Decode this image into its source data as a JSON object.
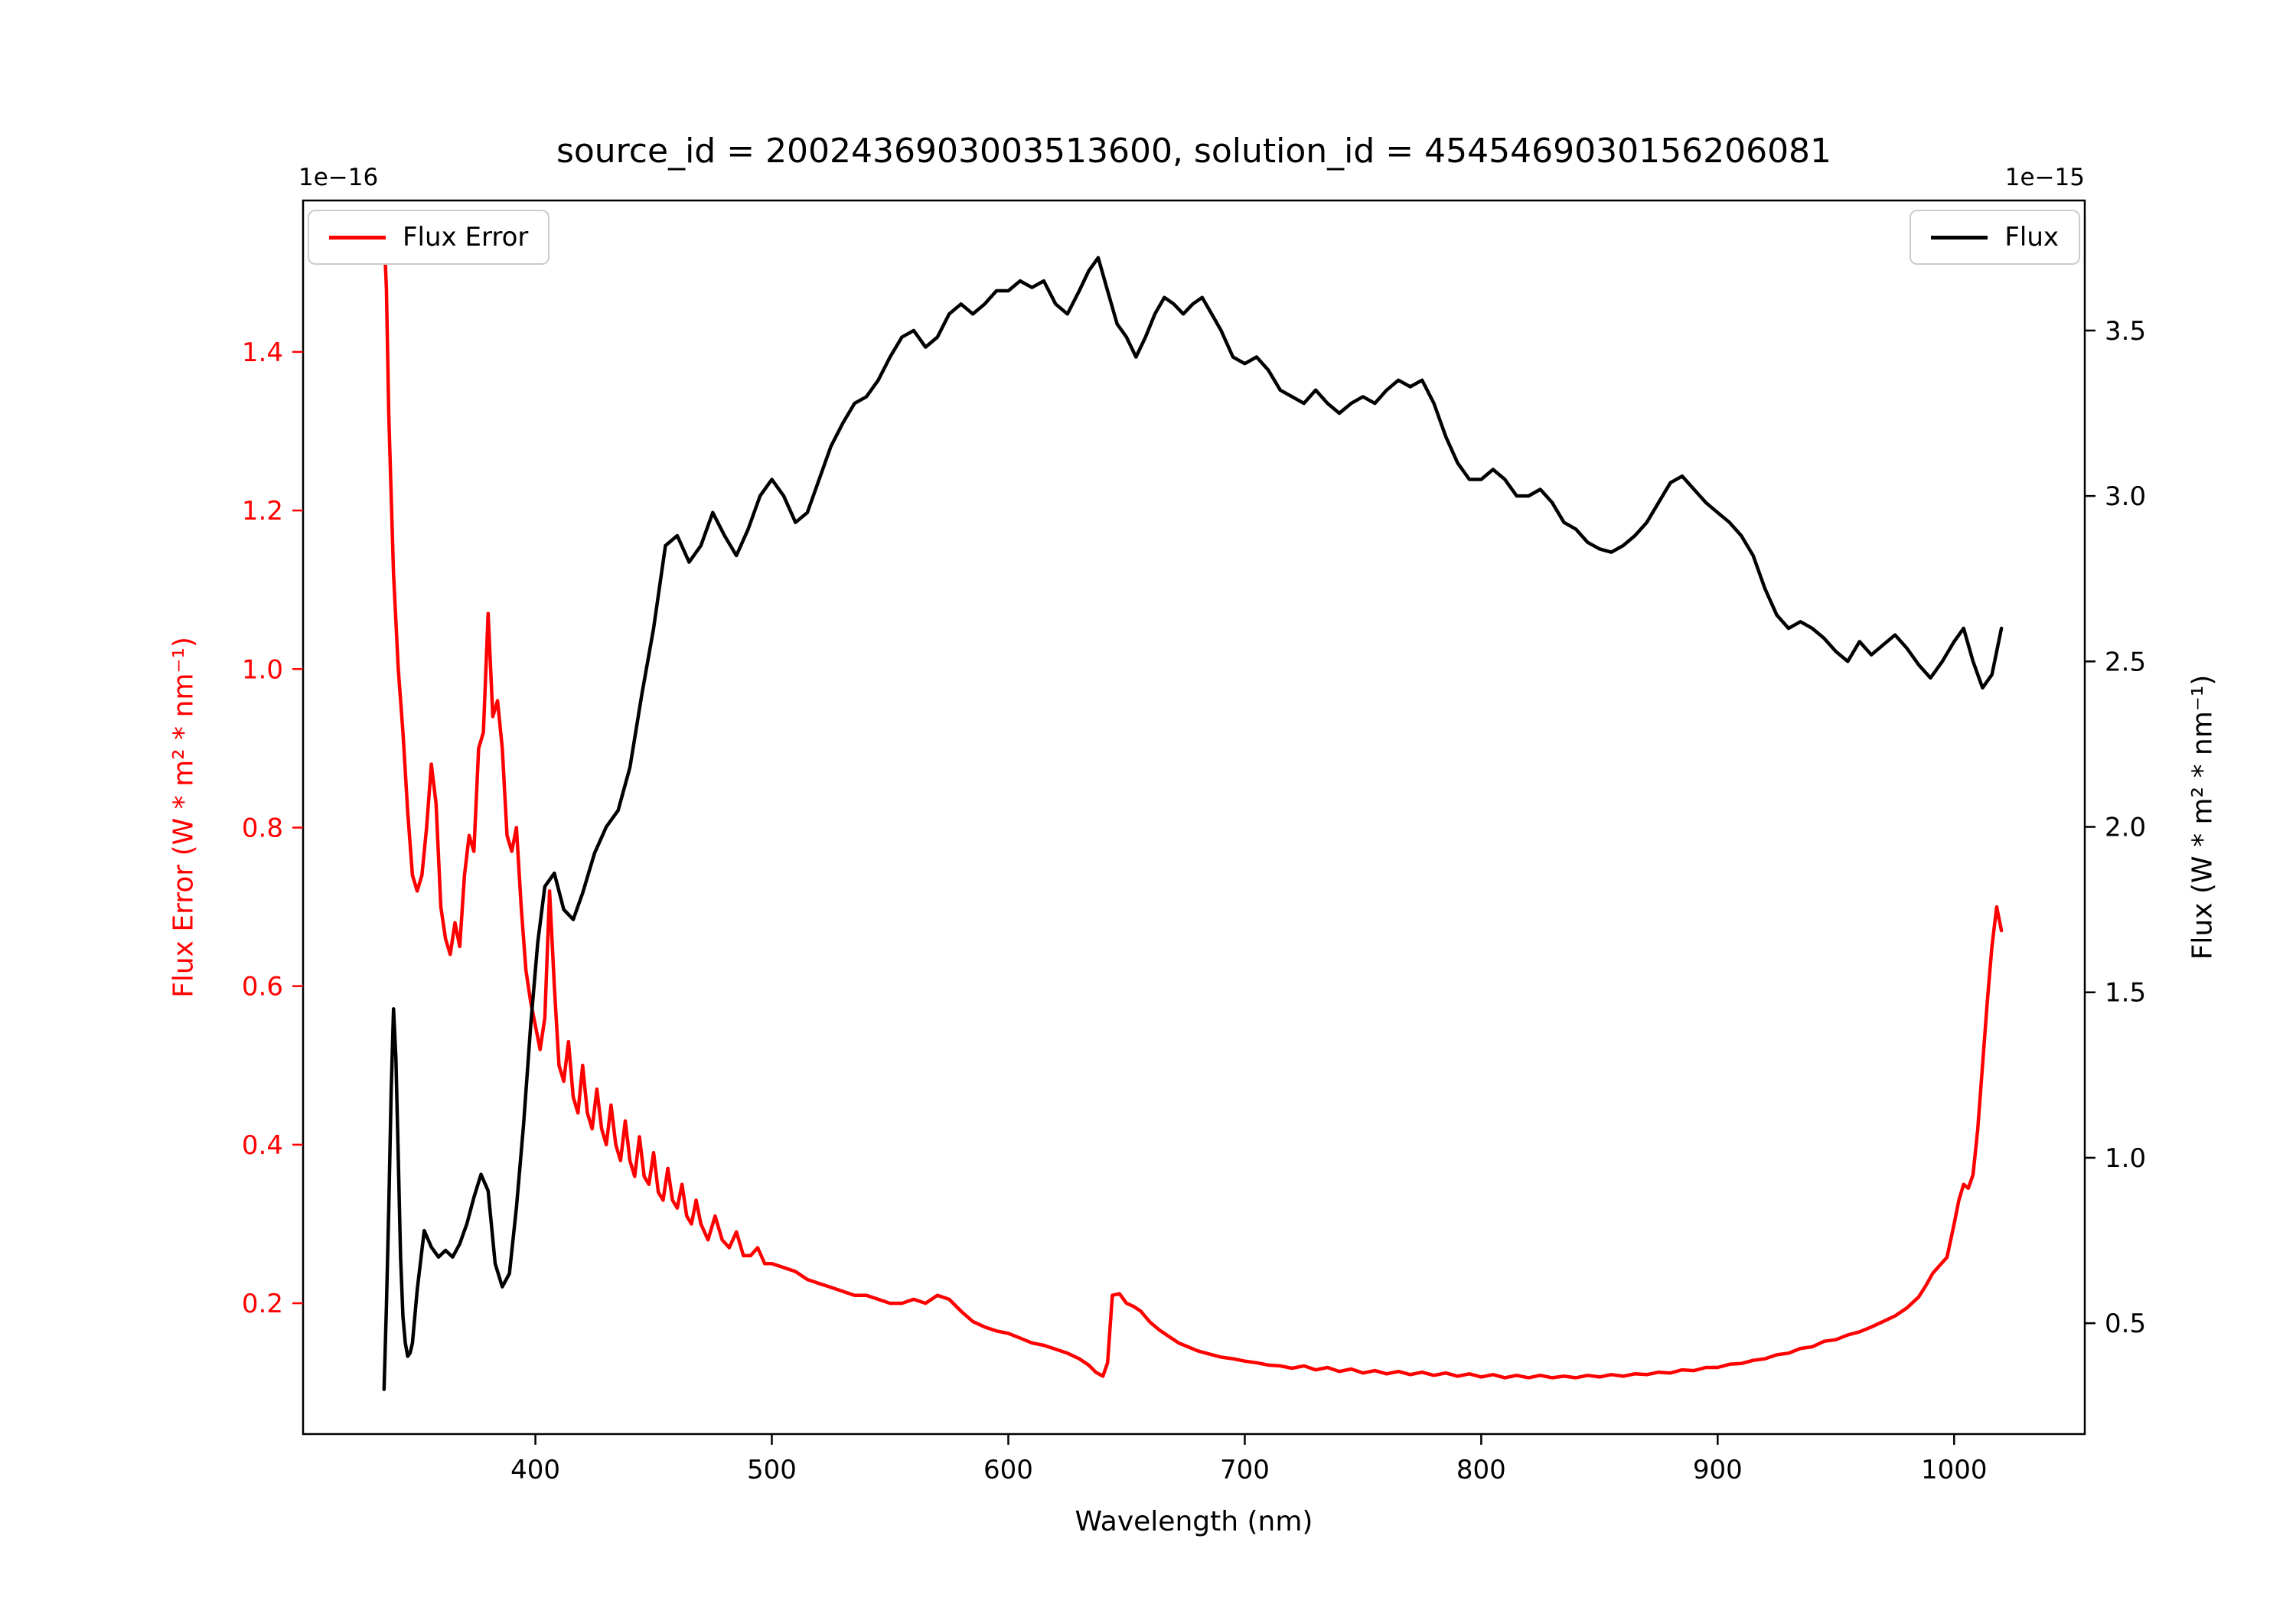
{
  "chart": {
    "y_left_offset": "1e−16",
    "y_right_offset": "1e−15"
  },
  "chart_data": {
    "type": "line",
    "title": "source_id = 2002436903003513600, solution_id = 4545469030156206081",
    "xlabel": "Wavelength (nm)",
    "y_left_label": "Flux Error (W * m² * nm⁻¹)",
    "y_right_label": "Flux (W * m² * nm⁻¹)",
    "y_left_offset": "1e−16",
    "y_right_offset": "1e−15",
    "grid": false,
    "x_range": [
      301.75,
      1055.25
    ],
    "x_ticks": [
      400,
      500,
      600,
      700,
      800,
      900,
      1000
    ],
    "y_left_range": [
      0.035,
      1.591
    ],
    "y_left_ticks": [
      0.2,
      0.4,
      0.6,
      0.8,
      1.0,
      1.2,
      1.4
    ],
    "y_right_range": [
      0.165,
      3.893
    ],
    "y_right_ticks": [
      0.5,
      1.0,
      1.5,
      2.0,
      2.5,
      3.0,
      3.5
    ],
    "legend_positions": [
      "upper left",
      "upper right"
    ],
    "series": [
      {
        "name": "Flux Error",
        "axis": "left",
        "color": "#ff0000",
        "unit_scale": "1e-16",
        "x": [
          336,
          337,
          338,
          340,
          342,
          344,
          346,
          348,
          350,
          352,
          354,
          356,
          358,
          360,
          362,
          364,
          366,
          368,
          370,
          372,
          374,
          376,
          378,
          380,
          382,
          384,
          386,
          388,
          390,
          392,
          394,
          396,
          398,
          400,
          402,
          404,
          406,
          408,
          410,
          412,
          414,
          416,
          418,
          420,
          422,
          424,
          426,
          428,
          430,
          432,
          434,
          436,
          438,
          440,
          442,
          444,
          446,
          448,
          450,
          452,
          454,
          456,
          458,
          460,
          462,
          464,
          466,
          468,
          470,
          473,
          476,
          479,
          482,
          485,
          488,
          491,
          494,
          497,
          500,
          505,
          510,
          515,
          520,
          525,
          530,
          535,
          540,
          545,
          550,
          555,
          560,
          565,
          570,
          575,
          580,
          585,
          590,
          595,
          600,
          605,
          610,
          615,
          620,
          625,
          630,
          634,
          637,
          640,
          642,
          644,
          647,
          650,
          653,
          656,
          660,
          664,
          668,
          672,
          676,
          680,
          685,
          690,
          695,
          700,
          705,
          710,
          715,
          720,
          725,
          730,
          735,
          740,
          745,
          750,
          755,
          760,
          765,
          770,
          775,
          780,
          785,
          790,
          795,
          800,
          805,
          810,
          815,
          820,
          825,
          830,
          835,
          840,
          845,
          850,
          855,
          860,
          865,
          870,
          875,
          880,
          885,
          890,
          895,
          900,
          905,
          910,
          915,
          920,
          925,
          930,
          935,
          940,
          945,
          950,
          955,
          960,
          965,
          970,
          975,
          980,
          985,
          988,
          991,
          994,
          997,
          1000,
          1002,
          1004,
          1006,
          1008,
          1010,
          1012,
          1014,
          1016,
          1018,
          1020
        ],
        "y": [
          1.55,
          1.48,
          1.32,
          1.12,
          1.0,
          0.92,
          0.82,
          0.74,
          0.72,
          0.74,
          0.8,
          0.88,
          0.83,
          0.7,
          0.66,
          0.64,
          0.68,
          0.65,
          0.74,
          0.79,
          0.77,
          0.9,
          0.92,
          1.07,
          0.94,
          0.96,
          0.9,
          0.79,
          0.77,
          0.8,
          0.7,
          0.62,
          0.58,
          0.55,
          0.52,
          0.56,
          0.72,
          0.6,
          0.5,
          0.48,
          0.53,
          0.46,
          0.44,
          0.5,
          0.44,
          0.42,
          0.47,
          0.42,
          0.4,
          0.45,
          0.4,
          0.38,
          0.43,
          0.38,
          0.36,
          0.41,
          0.36,
          0.35,
          0.39,
          0.34,
          0.33,
          0.37,
          0.33,
          0.32,
          0.35,
          0.31,
          0.3,
          0.33,
          0.3,
          0.28,
          0.31,
          0.28,
          0.27,
          0.29,
          0.26,
          0.26,
          0.27,
          0.25,
          0.25,
          0.245,
          0.24,
          0.23,
          0.225,
          0.22,
          0.215,
          0.21,
          0.21,
          0.205,
          0.2,
          0.2,
          0.205,
          0.2,
          0.21,
          0.205,
          0.19,
          0.177,
          0.17,
          0.165,
          0.162,
          0.156,
          0.15,
          0.147,
          0.142,
          0.137,
          0.13,
          0.122,
          0.113,
          0.108,
          0.125,
          0.21,
          0.212,
          0.2,
          0.196,
          0.19,
          0.176,
          0.166,
          0.158,
          0.15,
          0.145,
          0.14,
          0.136,
          0.132,
          0.13,
          0.127,
          0.125,
          0.122,
          0.121,
          0.118,
          0.121,
          0.116,
          0.119,
          0.114,
          0.117,
          0.112,
          0.115,
          0.111,
          0.114,
          0.11,
          0.113,
          0.109,
          0.112,
          0.108,
          0.111,
          0.107,
          0.11,
          0.106,
          0.109,
          0.106,
          0.109,
          0.106,
          0.108,
          0.106,
          0.109,
          0.107,
          0.11,
          0.108,
          0.111,
          0.11,
          0.113,
          0.112,
          0.116,
          0.115,
          0.119,
          0.119,
          0.123,
          0.124,
          0.128,
          0.13,
          0.135,
          0.137,
          0.143,
          0.145,
          0.152,
          0.154,
          0.16,
          0.164,
          0.17,
          0.177,
          0.184,
          0.194,
          0.208,
          0.222,
          0.238,
          0.248,
          0.258,
          0.3,
          0.33,
          0.35,
          0.345,
          0.362,
          0.42,
          0.5,
          0.58,
          0.65,
          0.7,
          0.67
        ]
      },
      {
        "name": "Flux",
        "axis": "right",
        "color": "#000000",
        "unit_scale": "1e-15",
        "x": [
          336,
          337,
          338,
          339,
          340,
          341,
          342,
          343,
          344,
          345,
          346,
          347,
          348,
          350,
          353,
          356,
          359,
          362,
          365,
          368,
          371,
          374,
          377,
          380,
          383,
          386,
          389,
          392,
          395,
          398,
          401,
          404,
          408,
          412,
          416,
          420,
          425,
          430,
          435,
          440,
          445,
          450,
          455,
          460,
          465,
          470,
          475,
          480,
          485,
          490,
          495,
          500,
          505,
          510,
          515,
          520,
          525,
          530,
          535,
          540,
          545,
          550,
          555,
          560,
          565,
          570,
          575,
          580,
          585,
          590,
          595,
          600,
          605,
          610,
          615,
          620,
          625,
          630,
          634,
          638,
          642,
          646,
          650,
          654,
          658,
          662,
          666,
          670,
          674,
          678,
          682,
          686,
          690,
          695,
          700,
          705,
          710,
          715,
          720,
          725,
          730,
          735,
          740,
          745,
          750,
          755,
          760,
          765,
          770,
          775,
          780,
          785,
          790,
          795,
          800,
          805,
          810,
          815,
          820,
          825,
          830,
          835,
          840,
          845,
          850,
          855,
          860,
          865,
          870,
          875,
          880,
          885,
          890,
          895,
          900,
          905,
          910,
          915,
          920,
          925,
          930,
          935,
          940,
          945,
          950,
          955,
          960,
          965,
          970,
          975,
          980,
          985,
          990,
          995,
          1000,
          1004,
          1008,
          1012,
          1016,
          1020
        ],
        "y": [
          0.3,
          0.55,
          0.85,
          1.2,
          1.45,
          1.3,
          1.0,
          0.7,
          0.52,
          0.44,
          0.4,
          0.41,
          0.44,
          0.6,
          0.78,
          0.73,
          0.7,
          0.72,
          0.7,
          0.74,
          0.8,
          0.88,
          0.95,
          0.9,
          0.68,
          0.61,
          0.65,
          0.85,
          1.1,
          1.4,
          1.65,
          1.82,
          1.86,
          1.75,
          1.72,
          1.8,
          1.92,
          2.0,
          2.05,
          2.18,
          2.4,
          2.6,
          2.85,
          2.88,
          2.8,
          2.85,
          2.95,
          2.88,
          2.82,
          2.9,
          3.0,
          3.05,
          3.0,
          2.92,
          2.95,
          3.05,
          3.15,
          3.22,
          3.28,
          3.3,
          3.35,
          3.42,
          3.48,
          3.5,
          3.45,
          3.48,
          3.55,
          3.58,
          3.55,
          3.58,
          3.62,
          3.62,
          3.65,
          3.63,
          3.65,
          3.58,
          3.55,
          3.62,
          3.68,
          3.72,
          3.62,
          3.52,
          3.48,
          3.42,
          3.48,
          3.55,
          3.6,
          3.58,
          3.55,
          3.58,
          3.6,
          3.55,
          3.5,
          3.42,
          3.4,
          3.42,
          3.38,
          3.32,
          3.3,
          3.28,
          3.32,
          3.28,
          3.25,
          3.28,
          3.3,
          3.28,
          3.32,
          3.35,
          3.33,
          3.35,
          3.28,
          3.18,
          3.1,
          3.05,
          3.05,
          3.08,
          3.05,
          3.0,
          3.0,
          3.02,
          2.98,
          2.92,
          2.9,
          2.86,
          2.84,
          2.83,
          2.85,
          2.88,
          2.92,
          2.98,
          3.04,
          3.06,
          3.02,
          2.98,
          2.95,
          2.92,
          2.88,
          2.82,
          2.72,
          2.64,
          2.6,
          2.62,
          2.6,
          2.57,
          2.53,
          2.5,
          2.56,
          2.52,
          2.55,
          2.58,
          2.54,
          2.49,
          2.45,
          2.5,
          2.56,
          2.6,
          2.5,
          2.42,
          2.46,
          2.6
        ]
      }
    ]
  }
}
